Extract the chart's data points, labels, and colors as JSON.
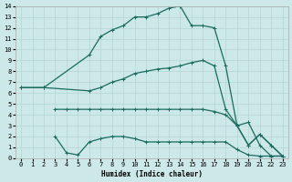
{
  "xlabel": "Humidex (Indice chaleur)",
  "bg_color": "#cce8e8",
  "grid_color": "#b8d8d8",
  "line_color": "#1a6b5e",
  "xlim": [
    -0.5,
    23.5
  ],
  "ylim": [
    0,
    14
  ],
  "line1_x": [
    0,
    2,
    6,
    7,
    8,
    9,
    10,
    11,
    12,
    13,
    14,
    15,
    16,
    17,
    18,
    19,
    20,
    21,
    22,
    23
  ],
  "line1_y": [
    6.5,
    6.5,
    9.5,
    11.2,
    11.8,
    12.2,
    13.0,
    13.0,
    13.3,
    13.8,
    14.0,
    12.2,
    12.2,
    12.0,
    8.5,
    3.0,
    1.2,
    2.2,
    1.2,
    0.2
  ],
  "line2_x": [
    0,
    2,
    6,
    7,
    8,
    9,
    10,
    11,
    12,
    13,
    14,
    15,
    16,
    17,
    18,
    19,
    20,
    21,
    22,
    23
  ],
  "line2_y": [
    6.5,
    6.5,
    6.2,
    6.5,
    7.0,
    7.3,
    7.8,
    8.0,
    8.2,
    8.3,
    8.5,
    8.8,
    9.0,
    8.5,
    4.5,
    3.0,
    1.2,
    2.2,
    1.2,
    0.2
  ],
  "line3_x": [
    3,
    4,
    5,
    6,
    7,
    8,
    9,
    10,
    11,
    12,
    13,
    14,
    15,
    16,
    17,
    18,
    19,
    20,
    21,
    22,
    23
  ],
  "line3_y": [
    4.5,
    4.5,
    4.5,
    4.5,
    4.5,
    4.5,
    4.5,
    4.5,
    4.5,
    4.5,
    4.5,
    4.5,
    4.5,
    4.5,
    4.3,
    4.0,
    3.0,
    3.3,
    1.2,
    0.2,
    0.2
  ],
  "line4_x": [
    3,
    4,
    5,
    6,
    7,
    8,
    9,
    10,
    11,
    12,
    13,
    14,
    15,
    16,
    17,
    18,
    19,
    20,
    21,
    22,
    23
  ],
  "line4_y": [
    2.0,
    0.5,
    0.3,
    1.5,
    1.8,
    2.0,
    2.0,
    1.8,
    1.5,
    1.5,
    1.5,
    1.5,
    1.5,
    1.5,
    1.5,
    1.5,
    0.8,
    0.3,
    0.2,
    0.2,
    0.2
  ]
}
